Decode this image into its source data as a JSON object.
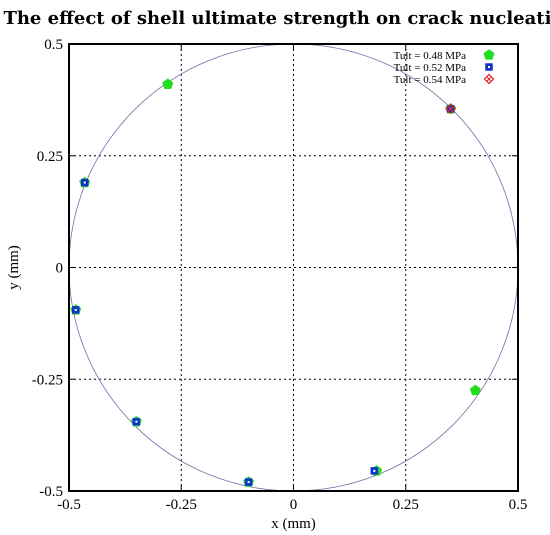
{
  "chart_data": {
    "type": "scatter",
    "title": "The effect of shell ultimate strength on crack nucleation",
    "xlabel": "x (mm)",
    "ylabel": "y (mm)",
    "xlim": [
      -0.5,
      0.5
    ],
    "ylim": [
      -0.5,
      0.5
    ],
    "x_ticks": [
      -0.5,
      -0.25,
      0,
      0.25,
      0.5
    ],
    "y_ticks": [
      -0.5,
      -0.25,
      0,
      0.25,
      0.5
    ],
    "x_tick_labels": [
      "-0.5",
      "-0.25",
      "0",
      "0.25",
      "0.5"
    ],
    "y_tick_labels": [
      "-0.5",
      "-0.25",
      "0",
      "0.25",
      "0.5"
    ],
    "grid": true,
    "legend_position": "top-right",
    "reference_circle": {
      "radius": 0.5,
      "color": "#7070a8"
    },
    "series": [
      {
        "name": "Tult = 0.48 MPa",
        "marker": "pentagon",
        "color": "#22dd22",
        "points": [
          [
            -0.28,
            0.41
          ],
          [
            0.35,
            0.355
          ],
          [
            0.405,
            -0.275
          ],
          [
            0.185,
            -0.455
          ],
          [
            -0.465,
            0.19
          ],
          [
            -0.485,
            -0.095
          ],
          [
            -0.35,
            -0.345
          ],
          [
            -0.1,
            -0.48
          ]
        ]
      },
      {
        "name": "Tult = 0.52 MPa",
        "marker": "square",
        "color": "#1133cc",
        "points": [
          [
            -0.465,
            0.19
          ],
          [
            -0.485,
            -0.095
          ],
          [
            -0.35,
            -0.345
          ],
          [
            -0.1,
            -0.48
          ],
          [
            0.18,
            -0.455
          ],
          [
            0.35,
            0.355
          ]
        ]
      },
      {
        "name": "Tult = 0.54 MPa",
        "marker": "diamond",
        "color": "#dd2222",
        "points": [
          [
            0.35,
            0.355
          ]
        ]
      }
    ]
  }
}
